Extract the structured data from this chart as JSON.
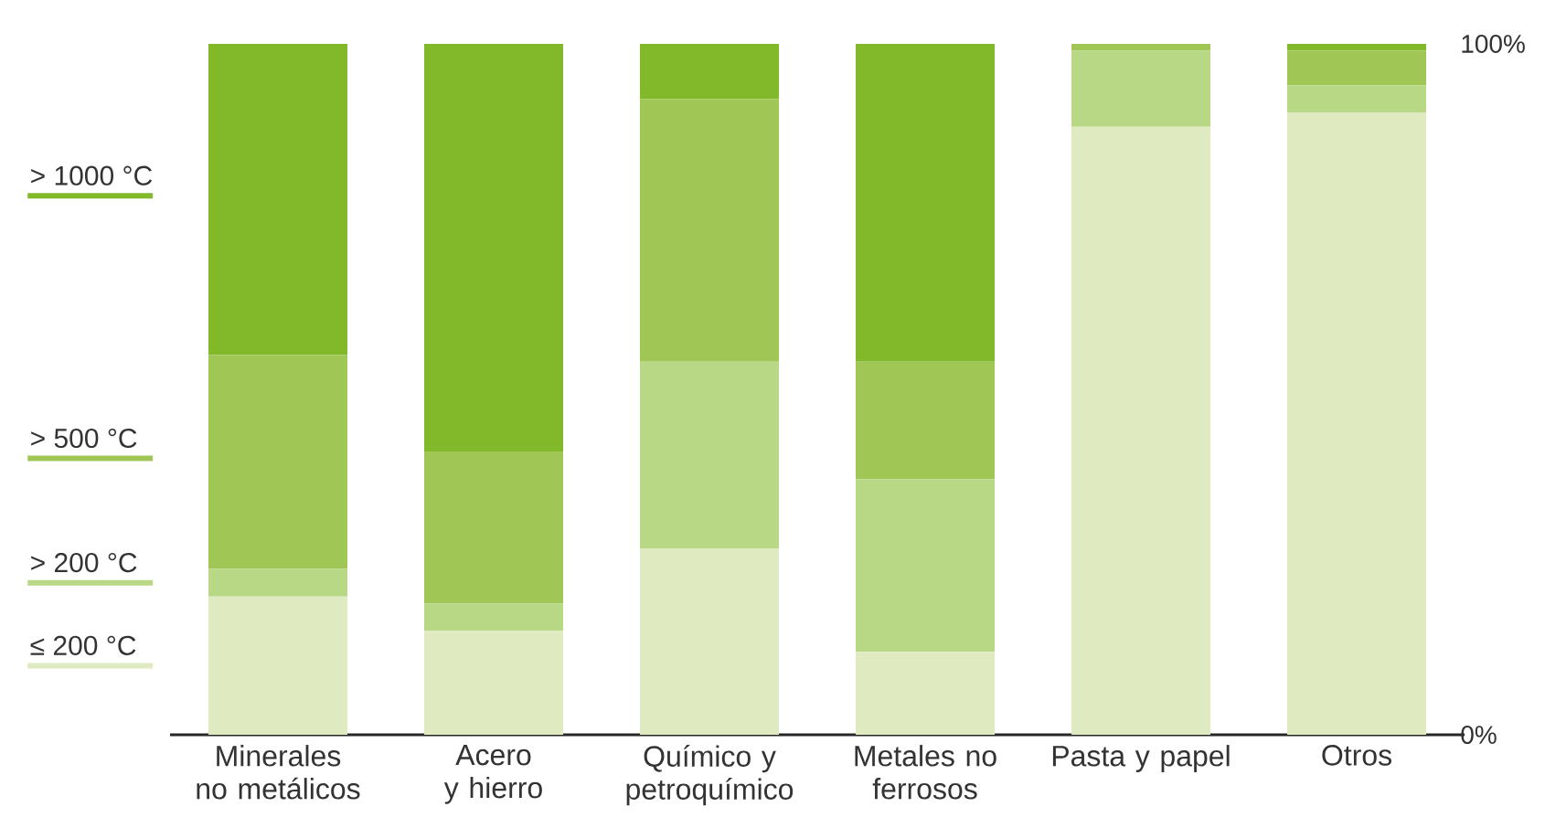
{
  "chart_data": {
    "type": "bar",
    "stacked": true,
    "categories": [
      "Minerales no metálicos",
      "Acero y hierro",
      "Químico y petroquímico",
      "Metales no ferrosos",
      "Pasta y papel",
      "Otros"
    ],
    "series": [
      {
        "name": "≤ 200 °C",
        "color": "#dfeac0",
        "values": [
          20,
          15,
          27,
          12,
          88,
          90
        ]
      },
      {
        "name": "> 200 °C",
        "color": "#b9d886",
        "values": [
          4,
          4,
          27,
          25,
          11,
          4
        ]
      },
      {
        "name": "> 500 °C",
        "color": "#a0c655",
        "values": [
          31,
          22,
          38,
          17,
          1,
          5
        ]
      },
      {
        "name": "> 1000 °C",
        "color": "#82b92a",
        "values": [
          45,
          59,
          8,
          46,
          0,
          1
        ]
      }
    ],
    "ylim": [
      0,
      100
    ],
    "yticks": [
      {
        "value": 0,
        "label": "0%"
      },
      {
        "value": 100,
        "label": "100%"
      }
    ],
    "grid": false,
    "legend": "left"
  }
}
